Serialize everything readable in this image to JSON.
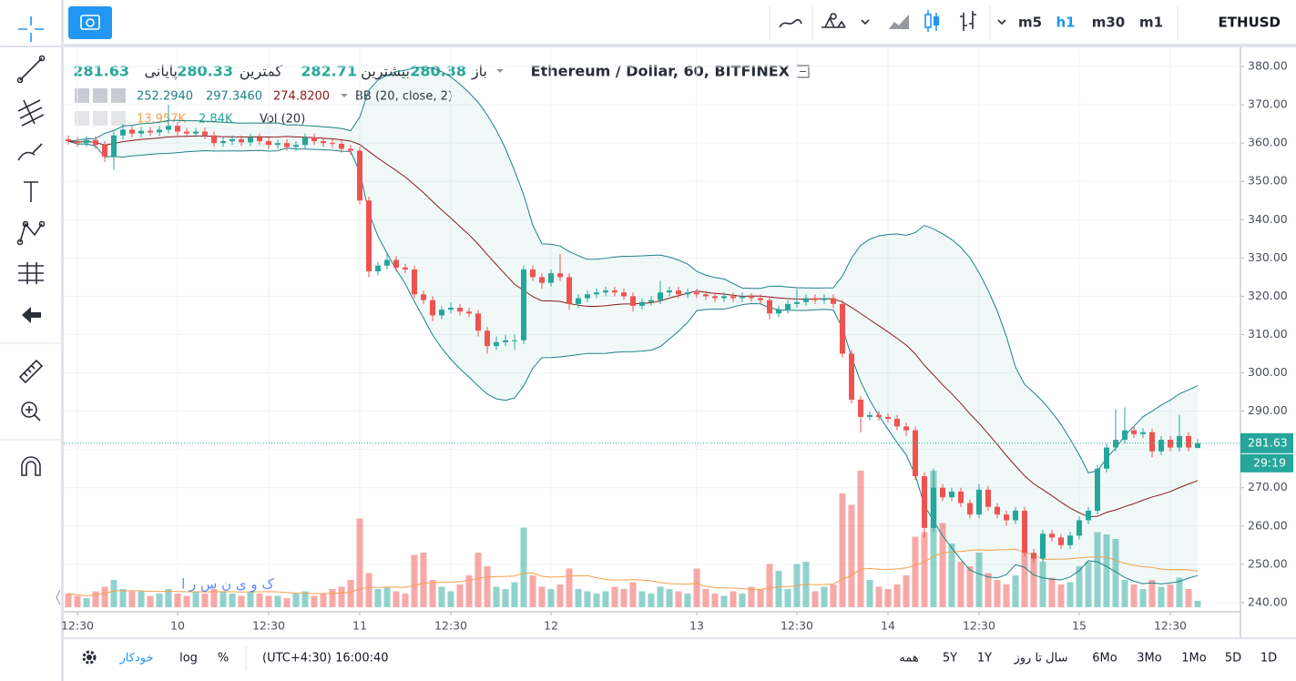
{
  "toolbar": {
    "intervals": [
      "m5",
      "h1",
      "m30",
      "m1"
    ],
    "active_interval": 1,
    "symbol": "ETHUSD"
  },
  "legend": {
    "title": "Ethereum / Dollar, 60, BITFINEX",
    "ohlc_labels": [
      "باز",
      "بیشترین",
      "کمترین",
      "پایانی"
    ],
    "bb_values": [
      "252.2940",
      "297.3460",
      "274.8200"
    ],
    "bb_name": "BB (20, close, 2)",
    "vol_values": [
      "13.957K",
      "2.84K"
    ],
    "vol_name": "Vol (20)"
  },
  "chart_data": {
    "type": "candlestick",
    "categories": [
      null,
      "12:30",
      null,
      null,
      null,
      null,
      null,
      null,
      null,
      null,
      null,
      null,
      "10",
      null,
      null,
      null,
      null,
      null,
      null,
      null,
      null,
      null,
      "12:30",
      null,
      null,
      null,
      null,
      null,
      null,
      null,
      null,
      null,
      "11",
      null,
      null,
      null,
      null,
      null,
      null,
      null,
      null,
      null,
      "12:30",
      null,
      null,
      null,
      null,
      null,
      null,
      null,
      null,
      null,
      null,
      "12",
      null,
      null,
      null,
      null,
      null,
      null,
      null,
      null,
      null,
      null,
      null,
      null,
      null,
      null,
      null,
      "13",
      null,
      null,
      null,
      null,
      null,
      null,
      null,
      null,
      null,
      null,
      "12:30",
      null,
      null,
      null,
      null,
      null,
      null,
      null,
      null,
      null,
      "14",
      null,
      null,
      null,
      null,
      null,
      null,
      null,
      null,
      null,
      "12:30",
      null,
      null,
      null,
      null,
      null,
      null,
      null,
      null,
      null,
      null,
      "15",
      null,
      null,
      null,
      null,
      null,
      null,
      null,
      null,
      null,
      "12:30",
      null,
      null,
      null
    ],
    "open": [
      361,
      360.5,
      360,
      360.8,
      359.5,
      356.5,
      362,
      363.5,
      362.5,
      363.2,
      362.8,
      363.5,
      364.5,
      363,
      362.5,
      363,
      362,
      360,
      360.5,
      361,
      360.2,
      361.5,
      360.5,
      359.5,
      360,
      359,
      359.5,
      361.5,
      360.5,
      360,
      359.8,
      358.5,
      358,
      345,
      326.5,
      328,
      329.5,
      327.5,
      327,
      320.5,
      319,
      315,
      316.5,
      317,
      316,
      315.5,
      311,
      307,
      308,
      308.5,
      308.5,
      327,
      325,
      323.5,
      326,
      325,
      318,
      319.5,
      320.5,
      321,
      321.5,
      321,
      320,
      317.5,
      318.5,
      319,
      321,
      321.5,
      320.5,
      321,
      320.5,
      320,
      319.5,
      320,
      319.5,
      319.8,
      319.5,
      319,
      315.5,
      316.5,
      318,
      318.5,
      319.5,
      319,
      319.5,
      318,
      305,
      293,
      288.5,
      289,
      288.5,
      288,
      286,
      285,
      273,
      259.5,
      270,
      267.5,
      269,
      266,
      263,
      269.5,
      265,
      263,
      261.5,
      264,
      253,
      251.5,
      258,
      257,
      255,
      257.5,
      261.5,
      264,
      275,
      280.5,
      282.5,
      285,
      284,
      284.5,
      279.5,
      282.5,
      280.5,
      283.5,
      280.38
    ],
    "high": [
      362,
      361.5,
      361.8,
      361.8,
      360.5,
      363,
      365,
      364.5,
      364.2,
      364.2,
      364.5,
      370,
      365.5,
      364,
      364,
      364,
      363,
      361.5,
      362,
      362,
      362.5,
      362.5,
      361.5,
      361,
      361,
      360.5,
      362.5,
      362.5,
      361.5,
      361,
      360.8,
      359.5,
      359,
      346,
      329,
      331,
      330.5,
      328.5,
      328,
      321.5,
      320,
      317.5,
      318.5,
      318,
      317,
      316.5,
      312,
      309.5,
      310,
      310,
      328,
      328,
      326,
      327,
      331,
      326,
      320.5,
      321.5,
      322,
      322.5,
      322.5,
      322,
      321,
      319.5,
      320,
      324,
      322.5,
      322.5,
      322,
      322,
      321.5,
      321,
      321,
      321,
      321,
      320.8,
      320.5,
      320,
      317.5,
      319,
      322,
      320.5,
      320.5,
      320.5,
      320.5,
      319,
      306,
      294,
      290,
      290,
      289.5,
      289,
      287,
      286,
      274,
      275,
      271,
      270,
      270,
      267,
      271,
      270.5,
      266,
      264,
      265,
      265,
      254,
      259,
      259,
      258,
      258.5,
      262.5,
      265,
      276,
      281.5,
      290.5,
      291,
      286,
      285.5,
      285.5,
      283.5,
      283.5,
      289,
      284.5,
      282.71
    ],
    "low": [
      359.5,
      359,
      359,
      358.5,
      355,
      353,
      361,
      361.5,
      361.5,
      361.8,
      361.8,
      362.5,
      362,
      361.5,
      361.5,
      361,
      359,
      359,
      359.5,
      359.2,
      359.2,
      359.5,
      358.5,
      358.5,
      358,
      358,
      358.5,
      359.5,
      359,
      358.8,
      357.5,
      357,
      344,
      325,
      325.5,
      327,
      326.5,
      326,
      319.5,
      318,
      313.5,
      314,
      315.5,
      315,
      314.5,
      309.5,
      305,
      306,
      307,
      306,
      307.5,
      324,
      322,
      322.5,
      324,
      316.5,
      317,
      318.5,
      319.5,
      320,
      320,
      319,
      316,
      316.5,
      317.5,
      318,
      320,
      319.5,
      319.5,
      319.5,
      319,
      318.5,
      318.5,
      318.5,
      318.5,
      318.5,
      318,
      314,
      314.5,
      315.5,
      317,
      317.5,
      318,
      318,
      317,
      304,
      292,
      284.5,
      287.5,
      287.5,
      287,
      285,
      283.5,
      272,
      257,
      258.5,
      266.5,
      266.5,
      265,
      262,
      262,
      264,
      262,
      260,
      260.5,
      252,
      250.5,
      250.5,
      256,
      254,
      254,
      256.5,
      260.5,
      263,
      274,
      279.5,
      281.5,
      283,
      283,
      278,
      278.5,
      279.5,
      279.5,
      279.5,
      280.33
    ],
    "close": [
      360.5,
      360,
      360.8,
      359.5,
      356.5,
      362,
      363.5,
      362.5,
      363.2,
      362.8,
      363.5,
      364.5,
      363,
      362.5,
      363,
      362,
      360,
      360.5,
      361,
      360.2,
      361.5,
      360.5,
      359.5,
      360,
      359,
      359.5,
      361.5,
      360.5,
      360,
      359.8,
      358.5,
      358,
      345,
      326.5,
      328,
      329.5,
      327.5,
      327,
      320.5,
      319,
      315,
      316.5,
      317,
      316,
      315.5,
      311,
      307,
      308,
      308.5,
      308.5,
      327,
      325,
      323.5,
      326,
      325,
      318,
      319.5,
      320.5,
      321,
      321.5,
      321,
      320,
      317.5,
      318.5,
      319,
      321,
      321.5,
      320.5,
      321,
      320.5,
      320,
      319.5,
      320,
      319.5,
      319.8,
      319.5,
      319,
      315.5,
      316.5,
      318,
      318.5,
      319.5,
      319,
      319.5,
      318,
      305,
      293,
      288.5,
      289,
      288.5,
      288,
      286,
      285,
      273,
      259.5,
      270,
      267.5,
      269,
      266,
      263,
      269.5,
      265,
      263,
      261.5,
      264,
      253,
      251.5,
      258,
      257,
      255,
      257.5,
      261.5,
      264,
      275,
      280.5,
      282.5,
      285,
      284,
      284.5,
      279.5,
      282.5,
      280.5,
      283.5,
      280.5,
      281.63
    ],
    "volume": [
      6,
      5,
      4,
      7,
      9,
      12,
      8,
      7,
      7,
      5,
      6,
      8,
      6,
      5,
      7,
      6,
      8,
      7,
      6,
      5,
      7,
      6,
      5,
      5,
      4,
      6,
      7,
      5,
      6,
      8,
      9,
      12,
      39,
      15,
      8,
      9,
      7,
      6,
      23,
      24,
      12,
      9,
      7,
      10,
      14,
      24,
      18,
      9,
      8,
      11,
      35,
      14,
      9,
      8,
      10,
      17,
      8,
      7,
      6,
      7,
      9,
      8,
      11,
      7,
      6,
      9,
      8,
      7,
      6,
      17,
      8,
      6,
      5,
      7,
      6,
      9,
      8,
      19,
      16,
      8,
      19,
      20,
      7,
      9,
      10,
      50,
      45,
      60,
      12,
      9,
      8,
      10,
      14,
      31,
      33,
      60,
      37,
      28,
      20,
      18,
      24,
      15,
      12,
      10,
      14,
      24,
      22,
      20,
      13,
      10,
      11,
      18,
      20,
      33,
      32,
      30,
      12,
      10,
      8,
      12,
      9,
      10,
      13,
      8,
      2.84
    ],
    "up_color": "#26a69a",
    "down_color": "#ef5350",
    "ylim": [
      237.6,
      385
    ],
    "yticks": [
      {
        "value": 240,
        "label": "240.00"
      },
      {
        "value": 250,
        "label": "250.00"
      },
      {
        "value": 260,
        "label": "260.00"
      },
      {
        "value": 270,
        "label": "270.00"
      },
      {
        "value": 280,
        "label": "280.00"
      },
      {
        "value": 290,
        "label": "290.00"
      },
      {
        "value": 300,
        "label": "300.00"
      },
      {
        "value": 310,
        "label": "310.00"
      },
      {
        "value": 320,
        "label": "320.00"
      },
      {
        "value": 330,
        "label": "330.00"
      },
      {
        "value": 340,
        "label": "340.00"
      },
      {
        "value": 350,
        "label": "350.00"
      },
      {
        "value": 360,
        "label": "360.00"
      },
      {
        "value": 370,
        "label": "370.00"
      },
      {
        "value": 380,
        "label": "380.00"
      }
    ],
    "grid": true,
    "countdown": "29:19",
    "watermark": "ک و ی ن   س ر ا"
  },
  "bottom_bar": {
    "left": [
      "خودکار",
      "log",
      "%"
    ],
    "time": "(UTC+4:30) 16:00:40",
    "ranges": [
      "همه",
      "5Y",
      "1Y",
      "سال تا روز",
      "6Mo",
      "3Mo",
      "1Mo",
      "5D",
      "1D"
    ]
  }
}
